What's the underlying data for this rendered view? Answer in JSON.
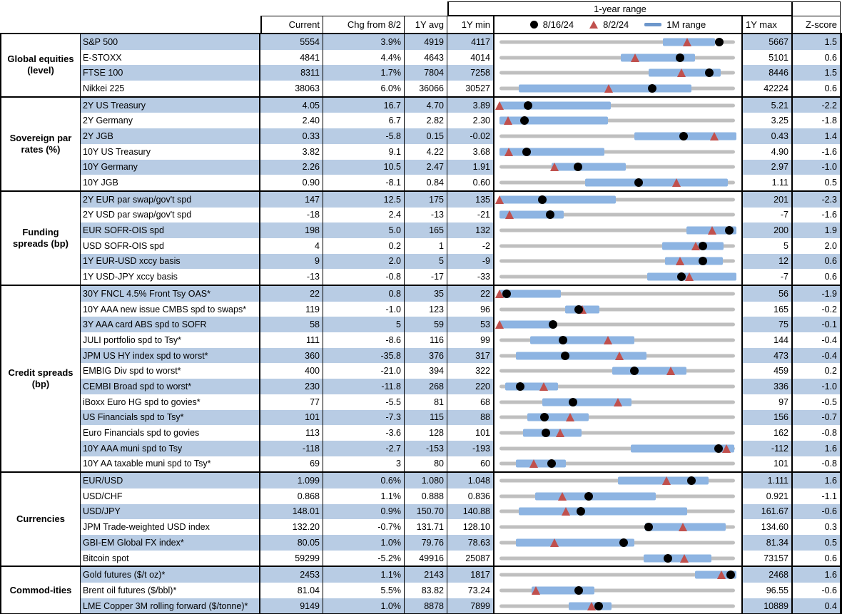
{
  "header": {
    "range_banner": "1-year range",
    "columns": {
      "current": "Current",
      "chg": "Chg from 8/2",
      "avg": "1Y avg",
      "min": "1Y min",
      "max": "1Y max",
      "z": "Z-score"
    },
    "legend": {
      "dot_label": "8/16/24",
      "tri_label": "8/2/24",
      "bar_label": "1M range"
    }
  },
  "colors": {
    "stripe": "#b8cce4",
    "range_bar": "#8db4e2",
    "track": "#bfbfbf",
    "triangle": "#c0504d",
    "dot": "#000000"
  },
  "chart_data": {
    "type": "table",
    "title": "1-year range",
    "note": "Each row shows Current, change since 8/2, 1Y average, 1Y min/max, Z-score, and a bullet chart: gray = 1Y range, blue = 1M range, black dot = 8/16/24 level, red triangle = 8/2/24 level. Marker/bar positions are fractions of the min-to-max track.",
    "sections": [
      {
        "name": "Global equities (level)",
        "rows": [
          {
            "label": "S&P 500",
            "current": "5554",
            "chg": "3.9%",
            "avg": "4919",
            "min": "4117",
            "max": "5667",
            "z": "1.5",
            "chart": {
              "dot": 0.927,
              "tri": 0.793,
              "bar": [
                0.69,
                0.91
              ]
            }
          },
          {
            "label": "E-STOXX",
            "current": "4841",
            "chg": "4.4%",
            "avg": "4643",
            "min": "4014",
            "max": "5101",
            "z": "0.6",
            "chart": {
              "dot": 0.761,
              "tri": 0.573,
              "bar": [
                0.513,
                0.825
              ]
            }
          },
          {
            "label": "FTSE 100",
            "current": "8311",
            "chg": "1.7%",
            "avg": "7804",
            "min": "7258",
            "max": "8446",
            "z": "1.5",
            "chart": {
              "dot": 0.886,
              "tri": 0.769,
              "bar": [
                0.63,
                0.933
              ]
            }
          },
          {
            "label": "Nikkei 225",
            "current": "38063",
            "chg": "6.0%",
            "avg": "36066",
            "min": "30527",
            "max": "42224",
            "z": "0.6",
            "chart": {
              "dot": 0.644,
              "tri": 0.46,
              "bar": [
                0.08,
                0.81
              ]
            }
          }
        ]
      },
      {
        "name": "Sovereign par rates (%)",
        "rows": [
          {
            "label": "2Y US Treasury",
            "current": "4.05",
            "chg": "16.7",
            "avg": "4.70",
            "min": "3.89",
            "max": "5.21",
            "z": "-2.2",
            "chart": {
              "dot": 0.121,
              "tri": 0.0,
              "bar": [
                0.0,
                0.47
              ]
            }
          },
          {
            "label": "2Y Germany",
            "current": "2.40",
            "chg": "6.7",
            "avg": "2.82",
            "min": "2.30",
            "max": "3.25",
            "z": "-1.8",
            "chart": {
              "dot": 0.105,
              "tri": 0.035,
              "bar": [
                0.0,
                0.457
              ]
            }
          },
          {
            "label": "2Y JGB",
            "current": "0.33",
            "chg": "-5.8",
            "avg": "0.15",
            "min": "-0.02",
            "max": "0.43",
            "z": "1.4",
            "chart": {
              "dot": 0.778,
              "tri": 0.907,
              "bar": [
                0.568,
                1.0
              ]
            }
          },
          {
            "label": "10Y US Treasury",
            "current": "3.82",
            "chg": "9.1",
            "avg": "4.22",
            "min": "3.68",
            "max": "4.90",
            "z": "-1.6",
            "chart": {
              "dot": 0.115,
              "tri": 0.04,
              "bar": [
                0.0,
                0.442
              ]
            }
          },
          {
            "label": "10Y Germany",
            "current": "2.26",
            "chg": "10.5",
            "avg": "2.47",
            "min": "1.91",
            "max": "2.97",
            "z": "-1.0",
            "chart": {
              "dot": 0.33,
              "tri": 0.231,
              "bar": [
                0.221,
                0.533
              ]
            }
          },
          {
            "label": "10Y JGB",
            "current": "0.90",
            "chg": "-8.1",
            "avg": "0.84",
            "min": "0.60",
            "max": "1.11",
            "z": "0.5",
            "chart": {
              "dot": 0.588,
              "tri": 0.747,
              "bar": [
                0.362,
                0.965
              ]
            }
          }
        ]
      },
      {
        "name": "Funding spreads (bp)",
        "rows": [
          {
            "label": "2Y EUR par swap/gov't spd",
            "current": "147",
            "chg": "12.5",
            "avg": "175",
            "min": "135",
            "max": "201",
            "z": "-2.3",
            "chart": {
              "dot": 0.182,
              "tri": 0.0,
              "bar": [
                0.0,
                0.49
              ]
            }
          },
          {
            "label": "2Y USD par swap/gov't spd",
            "current": "-18",
            "chg": "2.4",
            "avg": "-13",
            "min": "-21",
            "max": "-7",
            "z": "-1.6",
            "chart": {
              "dot": 0.214,
              "tri": 0.043,
              "bar": [
                0.0,
                0.27
              ]
            }
          },
          {
            "label": "EUR SOFR-OIS spd",
            "current": "198",
            "chg": "5.0",
            "avg": "165",
            "min": "132",
            "max": "200",
            "z": "1.9",
            "chart": {
              "dot": 0.971,
              "tri": 0.897,
              "bar": [
                0.79,
                1.0
              ]
            }
          },
          {
            "label": "USD SOFR-OIS spd",
            "current": "4",
            "chg": "0.2",
            "avg": "1",
            "min": "-2",
            "max": "5",
            "z": "2.0",
            "chart": {
              "dot": 0.857,
              "tri": 0.829,
              "bar": [
                0.688,
                0.945
              ]
            }
          },
          {
            "label": "1Y EUR-USD xccy basis",
            "current": "9",
            "chg": "2.0",
            "avg": "5",
            "min": "-9",
            "max": "12",
            "z": "0.6",
            "chart": {
              "dot": 0.857,
              "tri": 0.762,
              "bar": [
                0.698,
                0.944
              ]
            }
          },
          {
            "label": "1Y USD-JPY xccy basis",
            "current": "-13",
            "chg": "-0.8",
            "avg": "-17",
            "min": "-33",
            "max": "-7",
            "z": "0.6",
            "chart": {
              "dot": 0.769,
              "tri": 0.8,
              "bar": [
                0.623,
                1.0
              ]
            }
          }
        ]
      },
      {
        "name": "Credit spreads (bp)",
        "rows": [
          {
            "label": "30Y FNCL 4.5% Front Tsy OAS*",
            "current": "22",
            "chg": "0.8",
            "avg": "35",
            "min": "22",
            "max": "56",
            "z": "-1.9",
            "chart": {
              "dot": 0.03,
              "tri": 0.0,
              "bar": [
                0.0,
                0.26
              ]
            }
          },
          {
            "label": "10Y AAA new issue CMBS spd to swaps*",
            "current": "119",
            "chg": "-1.0",
            "avg": "123",
            "min": "96",
            "max": "165",
            "z": "-0.2",
            "chart": {
              "dot": 0.333,
              "tri": 0.348,
              "bar": [
                0.277,
                0.422
              ]
            }
          },
          {
            "label": "3Y AAA card ABS spd to SOFR",
            "current": "58",
            "chg": "5",
            "avg": "59",
            "min": "53",
            "max": "75",
            "z": "-0.1",
            "chart": {
              "dot": 0.227,
              "tri": 0.0,
              "bar": [
                0.0,
                0.23
              ]
            }
          },
          {
            "label": "JULI portfolio spd to Tsy*",
            "current": "111",
            "chg": "-8.6",
            "avg": "116",
            "min": "99",
            "max": "144",
            "z": "-0.4",
            "chart": {
              "dot": 0.267,
              "tri": 0.458,
              "bar": [
                0.131,
                0.568
              ]
            }
          },
          {
            "label": "JPM US HY index spd to worst*",
            "current": "360",
            "chg": "-35.8",
            "avg": "376",
            "min": "317",
            "max": "473",
            "z": "-0.4",
            "chart": {
              "dot": 0.276,
              "tri": 0.505,
              "bar": [
                0.07,
                0.621
              ]
            }
          },
          {
            "label": "EMBIG Div spd to worst*",
            "current": "400",
            "chg": "-21.0",
            "avg": "394",
            "min": "322",
            "max": "459",
            "z": "0.2",
            "chart": {
              "dot": 0.569,
              "tri": 0.723,
              "bar": [
                0.477,
                0.789
              ]
            }
          },
          {
            "label": "CEMBI Broad spd to worst*",
            "current": "230",
            "chg": "-11.8",
            "avg": "268",
            "min": "220",
            "max": "336",
            "z": "-1.0",
            "chart": {
              "dot": 0.086,
              "tri": 0.188,
              "bar": [
                0.025,
                0.246
              ]
            }
          },
          {
            "label": "iBoxx Euro HG spd to govies*",
            "current": "77",
            "chg": "-5.5",
            "avg": "81",
            "min": "68",
            "max": "97",
            "z": "-0.5",
            "chart": {
              "dot": 0.31,
              "tri": 0.5,
              "bar": [
                0.181,
                0.558
              ]
            }
          },
          {
            "label": "US Financials spd to Tsy*",
            "current": "101",
            "chg": "-7.3",
            "avg": "115",
            "min": "88",
            "max": "156",
            "z": "-0.7",
            "chart": {
              "dot": 0.191,
              "tri": 0.299,
              "bar": [
                0.116,
                0.377
              ]
            }
          },
          {
            "label": "Euro Financials spd to govies",
            "current": "113",
            "chg": "-3.6",
            "avg": "128",
            "min": "101",
            "max": "162",
            "z": "-0.8",
            "chart": {
              "dot": 0.197,
              "tri": 0.256,
              "bar": [
                0.1,
                0.347
              ]
            }
          },
          {
            "label": "10Y AAA muni spd to Tsy",
            "current": "-118",
            "chg": "-2.7",
            "avg": "-153",
            "min": "-193",
            "max": "-112",
            "z": "1.6",
            "chart": {
              "dot": 0.926,
              "tri": 0.959,
              "bar": [
                0.553,
                0.99
              ]
            }
          },
          {
            "label": "10Y AA taxable muni spd to Tsy*",
            "current": "69",
            "chg": "3",
            "avg": "80",
            "min": "60",
            "max": "101",
            "z": "-0.8",
            "chart": {
              "dot": 0.22,
              "tri": 0.146,
              "bar": [
                0.07,
                0.281
              ]
            }
          }
        ]
      },
      {
        "name": "Currencies",
        "rows": [
          {
            "label": "EUR/USD",
            "current": "1.099",
            "chg": "0.6%",
            "avg": "1.080",
            "min": "1.048",
            "max": "1.111",
            "z": "1.6",
            "chart": {
              "dot": 0.81,
              "tri": 0.705,
              "bar": [
                0.5,
                0.884
              ]
            }
          },
          {
            "label": "USD/CHF",
            "current": "0.868",
            "chg": "1.1%",
            "avg": "0.888",
            "min": "0.836",
            "max": "0.921",
            "z": "-1.1",
            "chart": {
              "dot": 0.376,
              "tri": 0.266,
              "bar": [
                0.151,
                0.661
              ]
            }
          },
          {
            "label": "USD/JPY",
            "current": "148.01",
            "chg": "0.9%",
            "avg": "150.70",
            "min": "140.88",
            "max": "161.67",
            "z": "-0.6",
            "chart": {
              "dot": 0.343,
              "tri": 0.279,
              "bar": [
                0.08,
                0.792
              ]
            }
          },
          {
            "label": "JPM Trade-weighted USD index",
            "current": "132.20",
            "chg": "-0.7%",
            "avg": "131.71",
            "min": "128.10",
            "max": "134.60",
            "z": "0.3",
            "chart": {
              "dot": 0.631,
              "tri": 0.774,
              "bar": [
                0.613,
                0.955
              ]
            }
          },
          {
            "label": "GBI-EM Global FX index*",
            "current": "80.05",
            "chg": "1.0%",
            "avg": "79.76",
            "min": "78.63",
            "max": "81.34",
            "z": "0.5",
            "chart": {
              "dot": 0.524,
              "tri": 0.231,
              "bar": [
                0.07,
                0.568
              ]
            }
          },
          {
            "label": "Bitcoin spot",
            "current": "59299",
            "chg": "-5.2%",
            "avg": "49916",
            "min": "25087",
            "max": "73157",
            "z": "0.6",
            "chart": {
              "dot": 0.712,
              "tri": 0.779,
              "bar": [
                0.608,
                0.895
              ]
            }
          }
        ]
      },
      {
        "name": "Commod-ities",
        "rows": [
          {
            "label": "Gold futures ($/t oz)*",
            "current": "2453",
            "chg": "1.1%",
            "avg": "2143",
            "min": "1817",
            "max": "2468",
            "z": "1.6",
            "chart": {
              "dot": 0.977,
              "tri": 0.936,
              "bar": [
                0.824,
                1.0
              ]
            }
          },
          {
            "label": "Brent oil futures ($/bbl)*",
            "current": "81.04",
            "chg": "5.5%",
            "avg": "83.82",
            "min": "73.24",
            "max": "96.55",
            "z": "-0.6",
            "chart": {
              "dot": 0.335,
              "tri": 0.153,
              "bar": [
                0.136,
                0.402
              ]
            }
          },
          {
            "label": "LME Copper 3M rolling forward ($/tonne)*",
            "current": "9149",
            "chg": "1.0%",
            "avg": "8878",
            "min": "7899",
            "max": "10889",
            "z": "0.4",
            "chart": {
              "dot": 0.418,
              "tri": 0.388,
              "bar": [
                0.292,
                0.473
              ]
            }
          }
        ]
      }
    ]
  }
}
